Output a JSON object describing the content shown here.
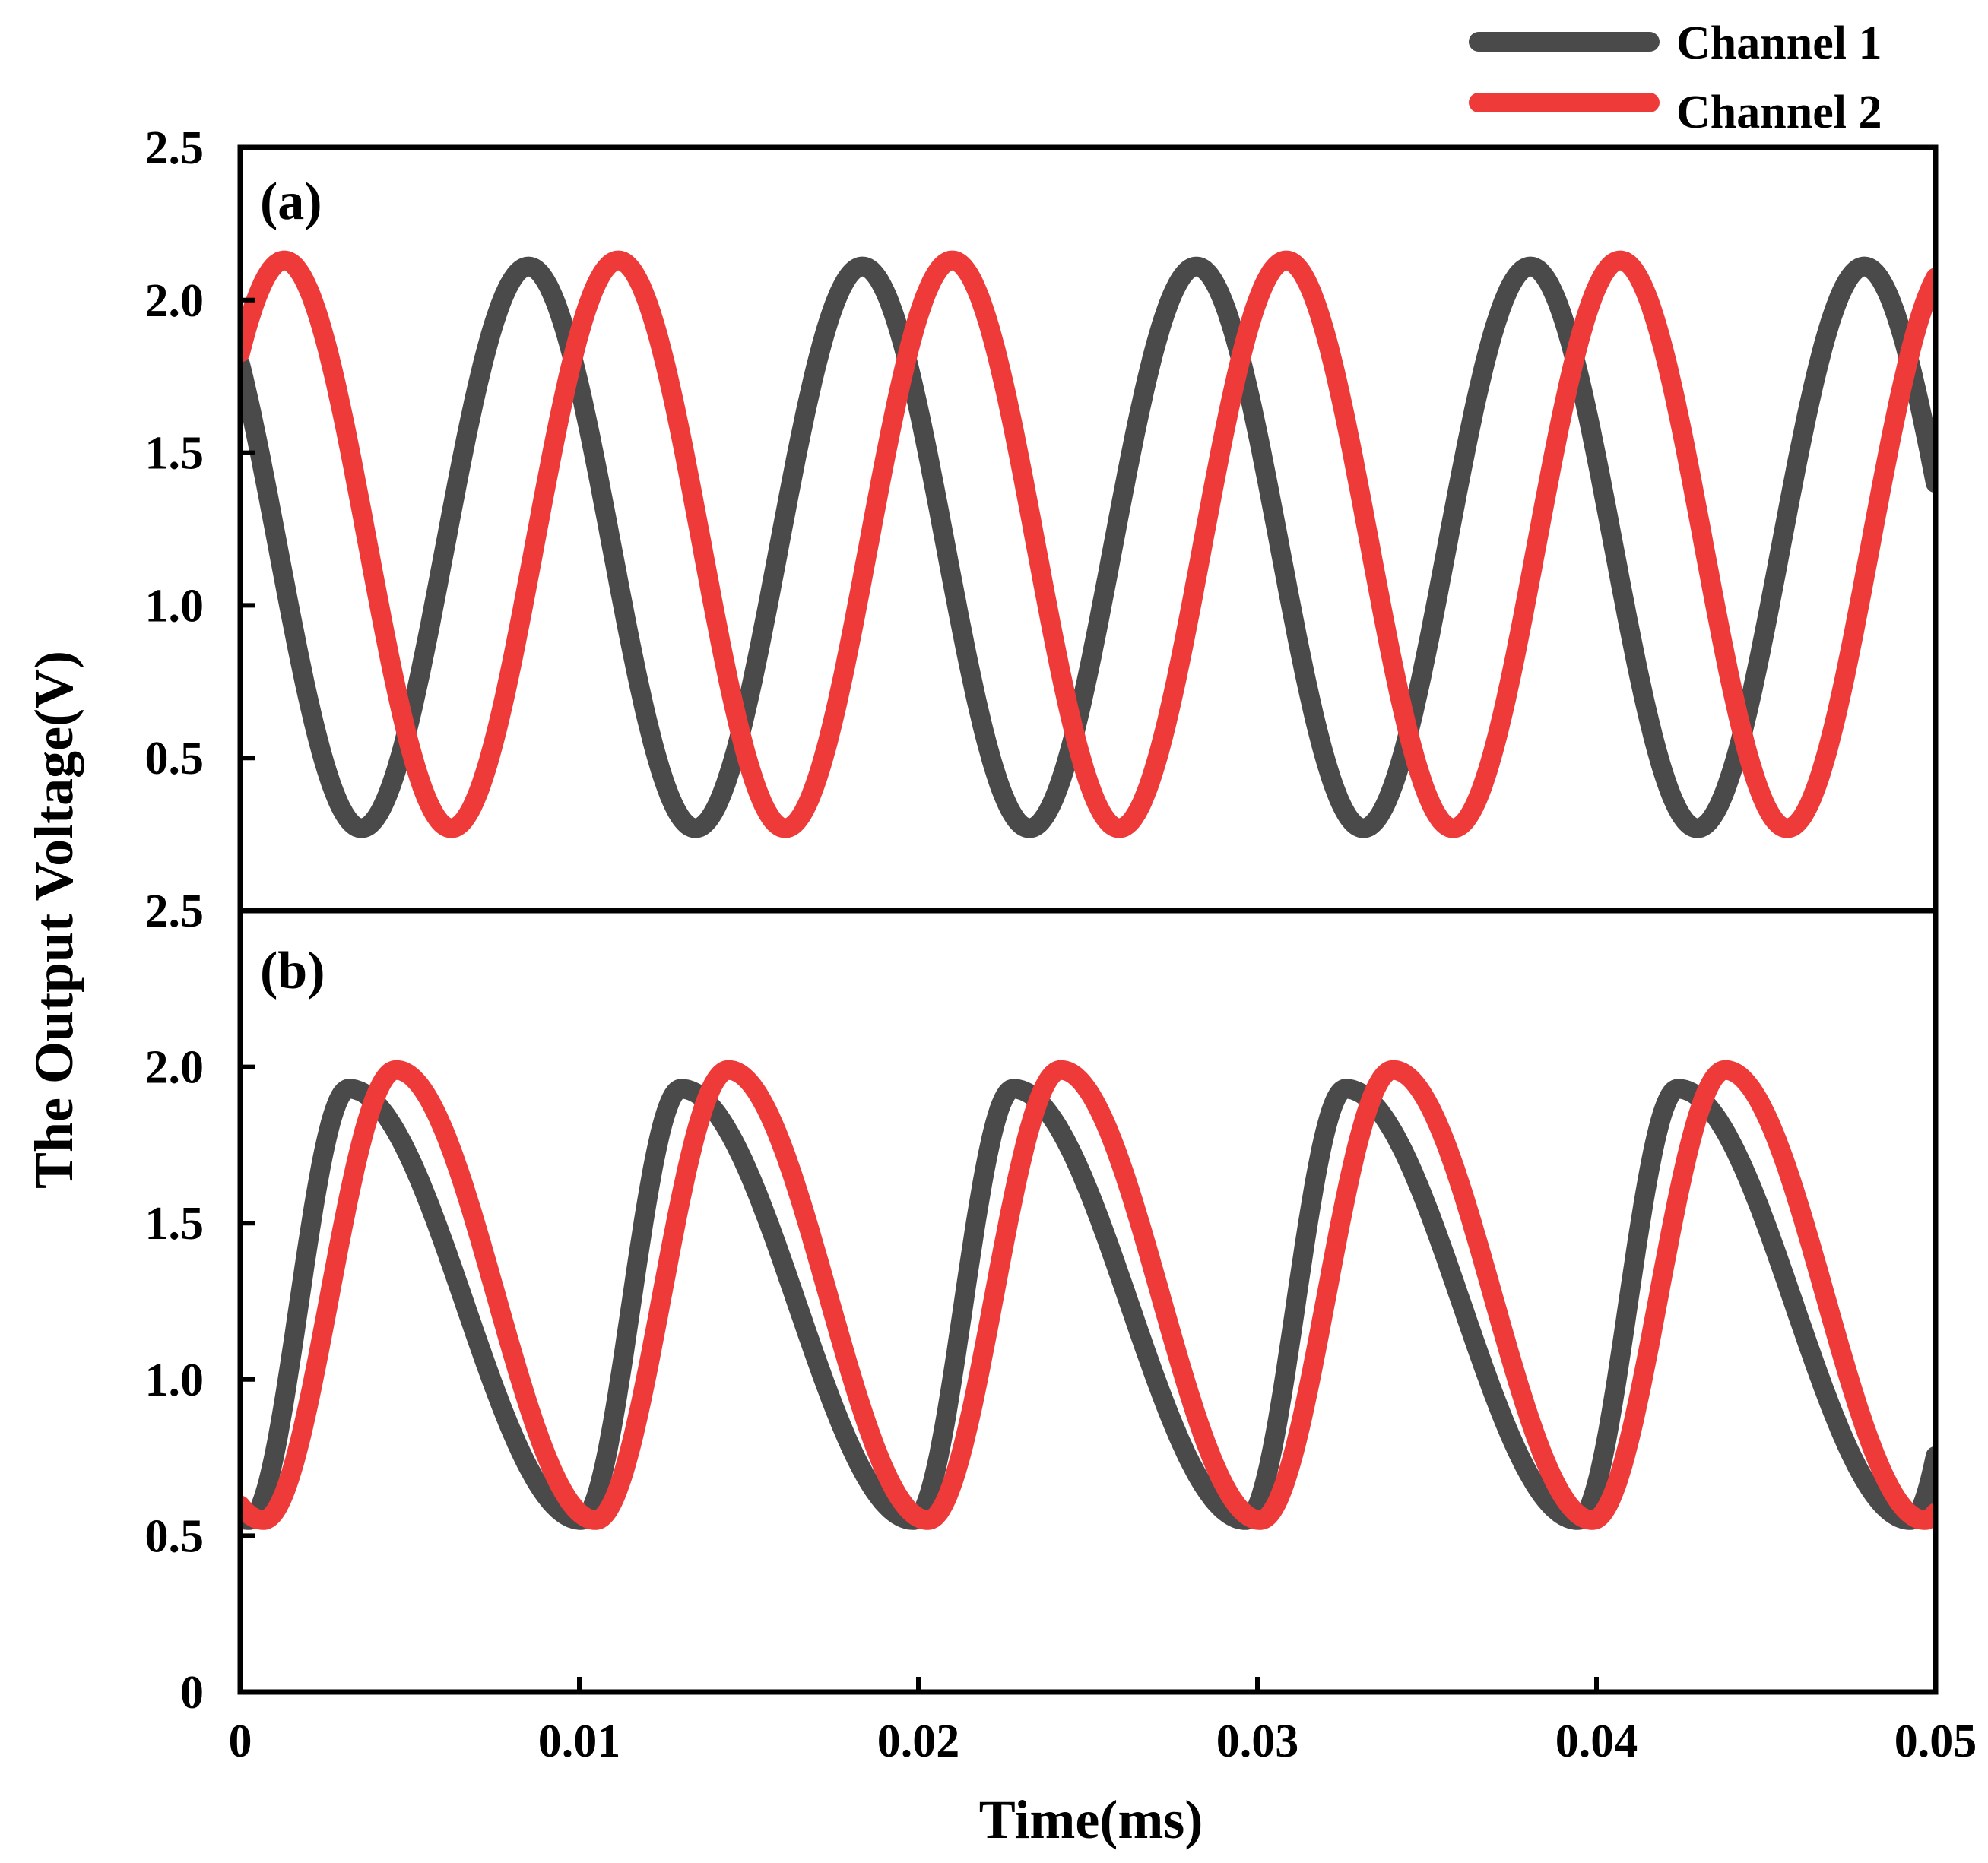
{
  "chart_data": [
    {
      "type": "line",
      "panel_label": "(a)",
      "xlabel": "Time(ms)",
      "ylabel": "The Output Voltage(V)",
      "xlim": [
        0,
        0.05
      ],
      "ylim": [
        0,
        2.5
      ],
      "y_ticks": [
        0.5,
        1.0,
        1.5,
        2.0,
        2.5
      ],
      "y_tick_labels": [
        "0.5",
        "1.0",
        "1.5",
        "2.0",
        "2.5"
      ],
      "series": [
        {
          "name": "Channel 1",
          "color": "#4a4a4a",
          "kind": "sine",
          "min": 0.27,
          "max": 2.11,
          "period_ms": 0.00985,
          "first_peak_ms": 0.0085
        },
        {
          "name": "Channel 2",
          "color": "#ef3a3a",
          "kind": "sine",
          "min": 0.27,
          "max": 2.13,
          "period_ms": 0.00985,
          "first_peak_ms": 0.0013
        }
      ]
    },
    {
      "type": "line",
      "panel_label": "(b)",
      "xlabel": "Time(ms)",
      "ylabel": "The Output Voltage(V)",
      "xlim": [
        0,
        0.05
      ],
      "ylim": [
        0,
        2.5
      ],
      "y_ticks": [
        0,
        0.5,
        1.0,
        1.5,
        2.0,
        2.5
      ],
      "y_tick_labels": [
        "0",
        "0.5",
        "1.0",
        "1.5",
        "2.0",
        "2.5"
      ],
      "x_ticks": [
        0,
        0.01,
        0.02,
        0.03,
        0.04,
        0.05
      ],
      "x_tick_labels": [
        "0",
        "0.01",
        "0.02",
        "0.03",
        "0.04",
        "0.05"
      ],
      "series": [
        {
          "name": "Channel 1",
          "color": "#4a4a4a",
          "kind": "skewed",
          "min": 0.55,
          "max": 1.93,
          "period_ms": 0.0098,
          "first_peak_ms": 0.0032,
          "rise_fraction": 0.3
        },
        {
          "name": "Channel 2",
          "color": "#ef3a3a",
          "kind": "skewed",
          "min": 0.55,
          "max": 1.99,
          "period_ms": 0.0098,
          "first_peak_ms": 0.0046,
          "rise_fraction": 0.4
        }
      ]
    }
  ],
  "legend": {
    "placement": "top-right",
    "entries": [
      {
        "label": "Channel 1",
        "color": "#4a4a4a"
      },
      {
        "label": "Channel 2",
        "color": "#ef3a3a"
      }
    ]
  },
  "shared_axes": {
    "xlabel": "Time(ms)",
    "ylabel": "The Output Voltage(V)"
  }
}
